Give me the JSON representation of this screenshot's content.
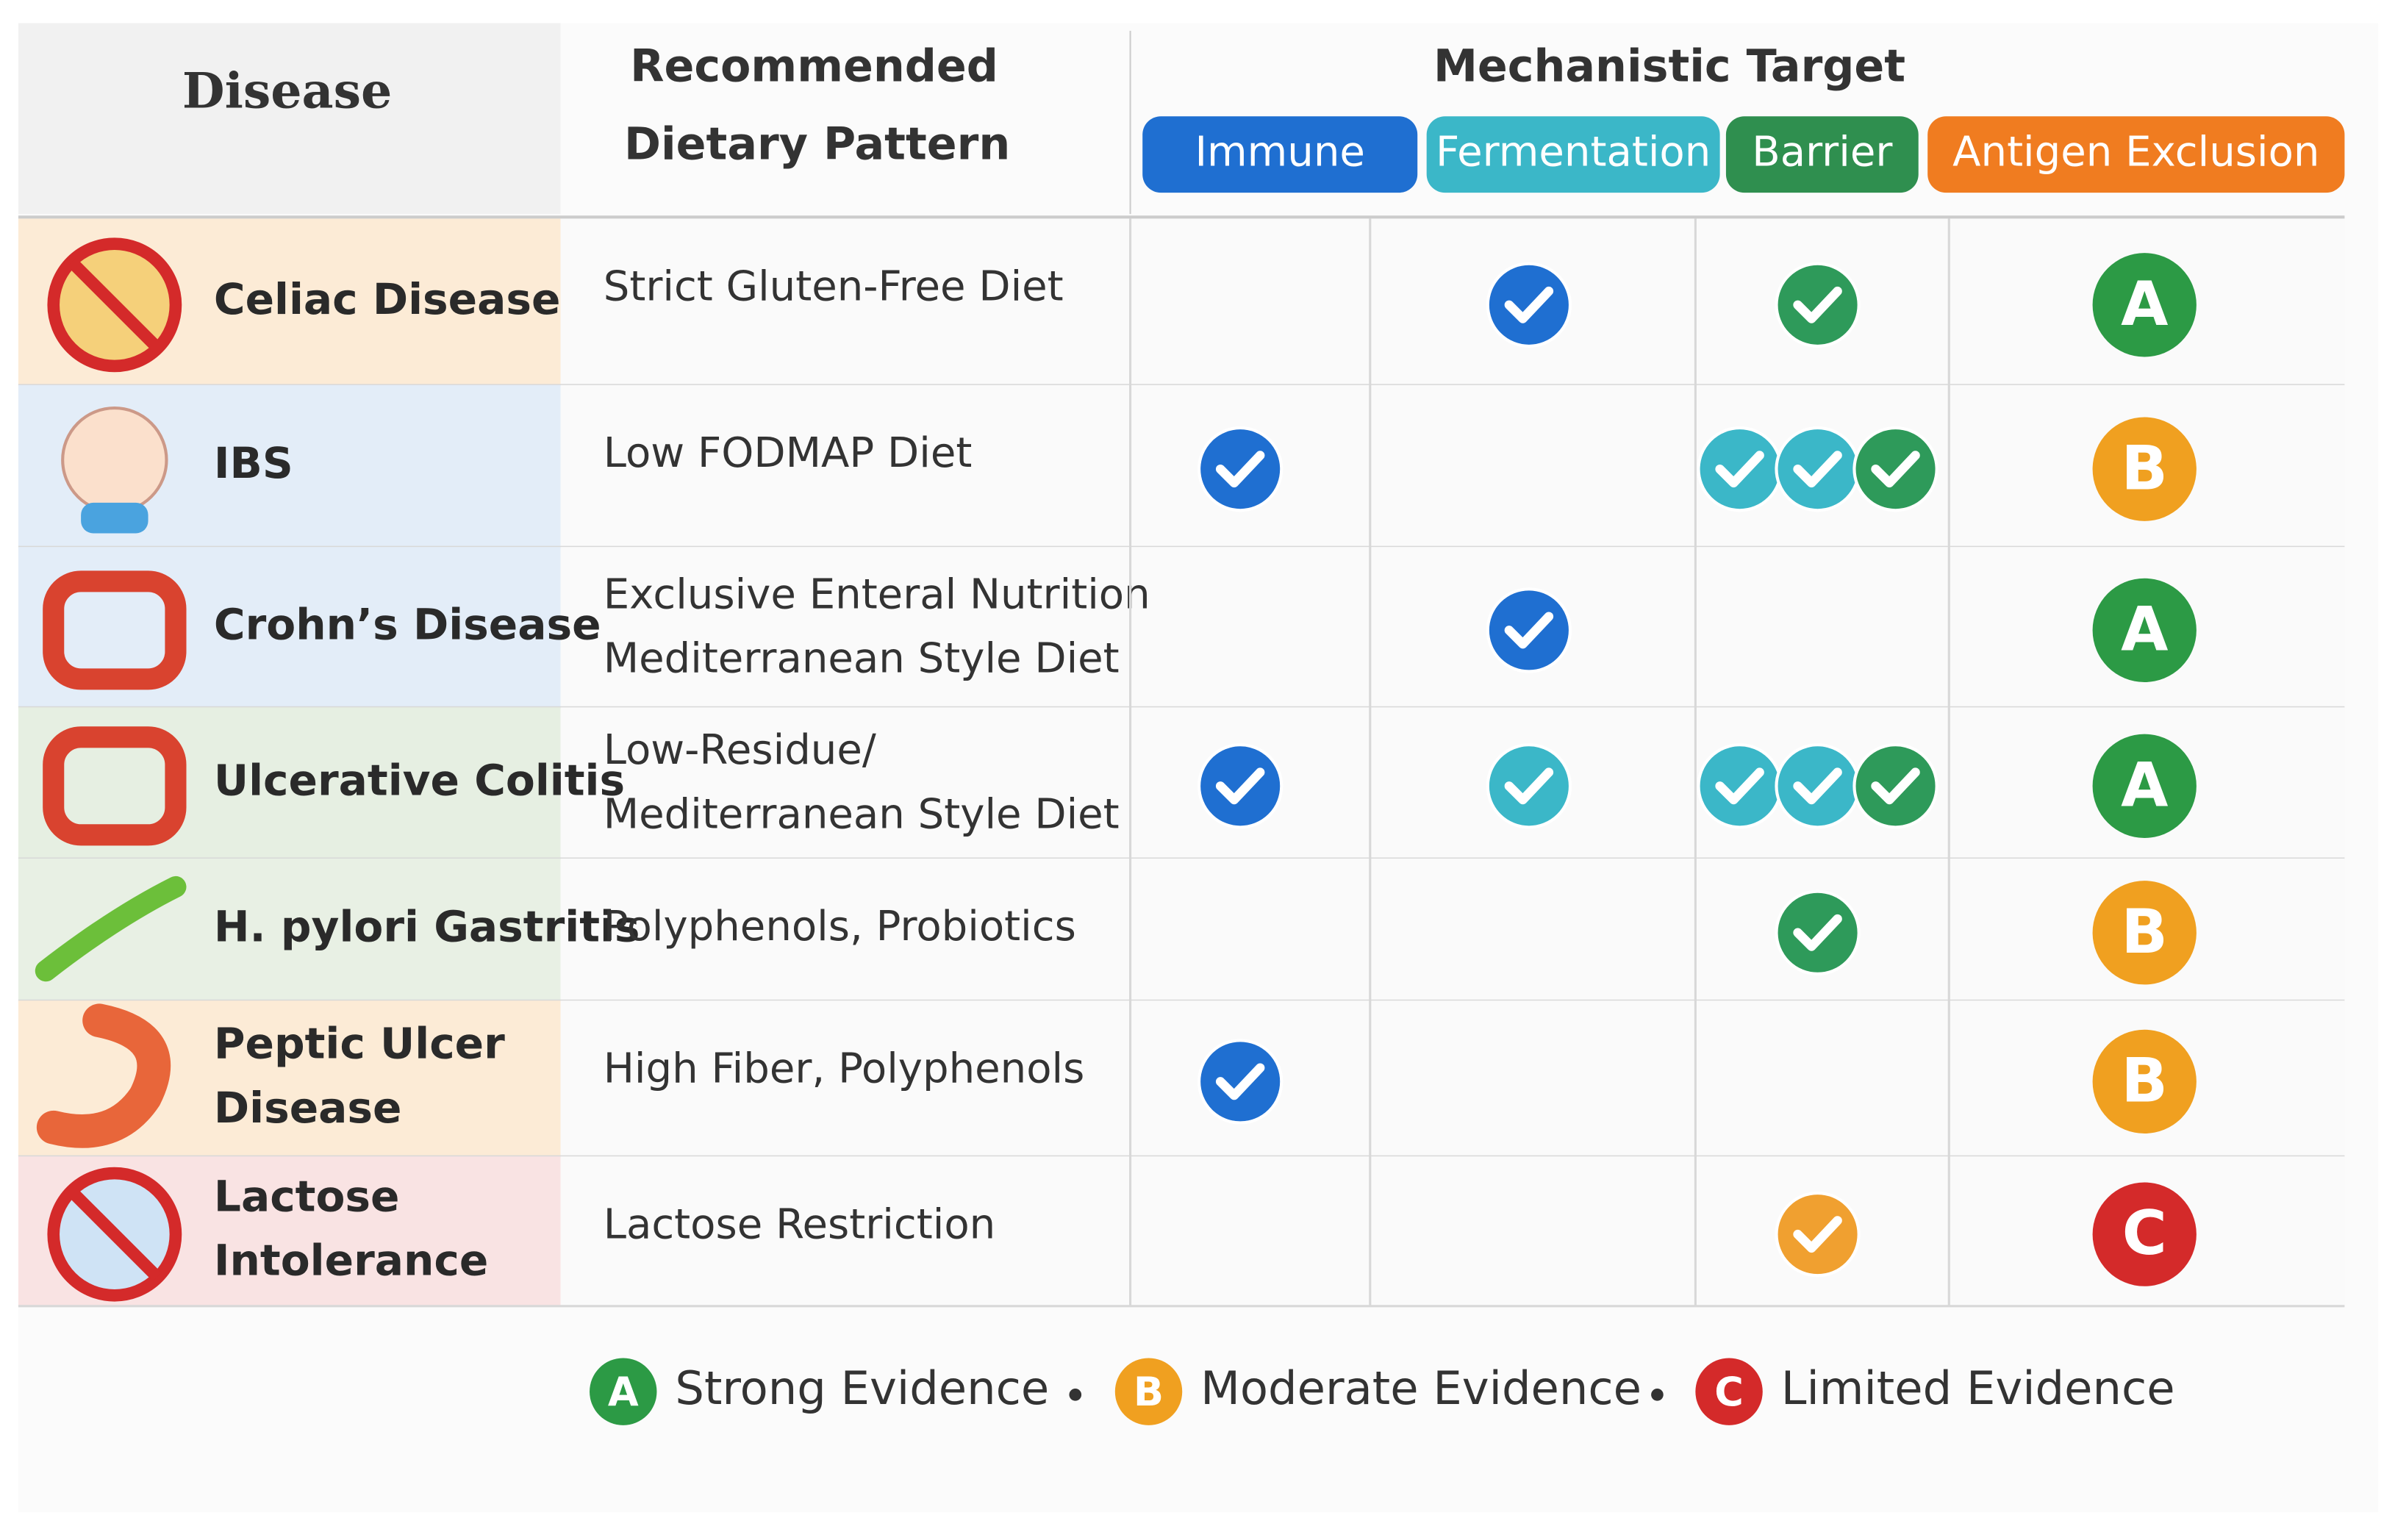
{
  "header": {
    "disease": "Disease",
    "pattern": [
      "Recommended",
      "Dietary Pattern"
    ],
    "target": "Mechanistic Target",
    "columns": [
      {
        "label": "Immune",
        "color": "#1f6fd1"
      },
      {
        "label": "Fermentation",
        "color": "#3bb7c8"
      },
      {
        "label": "Barrier",
        "color": "#2f8f4f"
      },
      {
        "label": "Antigen Exclusion",
        "color": "#f07c20"
      }
    ]
  },
  "rows": [
    {
      "disease": [
        "Celiac Disease"
      ],
      "diet": [
        "Strict Gluten-Free Diet"
      ],
      "tint": "#fcebd6",
      "checks": [
        [],
        [
          "#1f6fd1"
        ],
        [
          "#2e9a5a"
        ]
      ],
      "grade": "A"
    },
    {
      "disease": [
        "IBS"
      ],
      "diet": [
        "Low FODMAP Diet"
      ],
      "tint": "#e3edf8",
      "checks": [
        [
          "#1f6fd1"
        ],
        [],
        [
          "#3bb7c8",
          "#3bb7c8",
          "#2e9a5a"
        ]
      ],
      "grade": "B"
    },
    {
      "disease": [
        "Crohn’s Disease"
      ],
      "diet": [
        "Exclusive Enteral Nutrition",
        "Mediterranean Style Diet"
      ],
      "tint": "#e3edf8",
      "checks": [
        [],
        [
          "#1f6fd1"
        ],
        []
      ],
      "grade": "A"
    },
    {
      "disease": [
        "Ulcerative Colitis"
      ],
      "diet": [
        "Low-Residue/",
        "Mediterranean Style Diet"
      ],
      "tint": "#e6efe2",
      "checks": [
        [
          "#1f6fd1"
        ],
        [
          "#3bb7c8"
        ],
        [
          "#3bb7c8",
          "#3bb7c8",
          "#2e9a5a"
        ]
      ],
      "grade": "A"
    },
    {
      "disease": [
        "H. pylori Gastritis"
      ],
      "diet": [
        "Polyphenols, Probiotics"
      ],
      "tint": "#e8f0e4",
      "checks": [
        [],
        [],
        [
          "#2e9a5a"
        ]
      ],
      "grade": "B"
    },
    {
      "disease": [
        "Peptic Ulcer",
        "Disease"
      ],
      "diet": [
        "High Fiber, Polyphenols"
      ],
      "tint": "#fcebd6",
      "checks": [
        [
          "#1f6fd1"
        ],
        [],
        []
      ],
      "grade": "B"
    },
    {
      "disease": [
        "Lactose",
        "Intolerance"
      ],
      "diet": [
        "Lactose Restriction"
      ],
      "tint": "#f9e3e3",
      "checks": [
        [],
        [],
        [
          "#f0a030"
        ]
      ],
      "grade": "C"
    }
  ],
  "legend": [
    {
      "letter": "A",
      "color": "#2c9a45",
      "label": "Strong Evidence"
    },
    {
      "letter": "B",
      "color": "#f0a020",
      "label": "Moderate Evidence"
    },
    {
      "letter": "C",
      "color": "#d42a2a",
      "label": "Limited Evidence"
    }
  ]
}
